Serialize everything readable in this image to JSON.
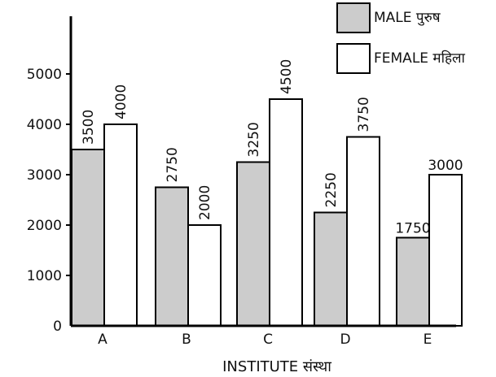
{
  "chart_data": {
    "type": "bar",
    "title": "",
    "xlabel": "INSTITUTE संस्था",
    "ylabel": "",
    "categories": [
      "A",
      "B",
      "C",
      "D",
      "E"
    ],
    "series": [
      {
        "name": "MALE पुरुष",
        "values": [
          3500,
          2750,
          3250,
          2250,
          1750
        ],
        "color": "#cccccc"
      },
      {
        "name": "FEMALE महिला",
        "values": [
          4000,
          2000,
          4500,
          3750,
          3000
        ],
        "color": "#ffffff"
      }
    ],
    "yticks": [
      0,
      1000,
      2000,
      3000,
      4000,
      5000
    ],
    "ylim": [
      0,
      5500
    ],
    "grid": false,
    "legend_position": "top-right",
    "data_labels": true
  }
}
